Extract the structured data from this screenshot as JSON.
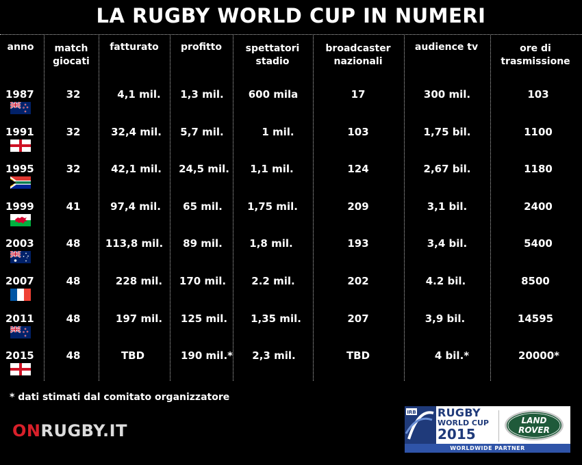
{
  "title": "LA RUGBY WORLD CUP IN NUMERI",
  "headers": {
    "anno": [
      "anno"
    ],
    "match": [
      "match",
      "giocati"
    ],
    "fatturato": [
      "fatturato"
    ],
    "profitto": [
      "profitto"
    ],
    "spettatori": [
      "spettatori",
      "stadio"
    ],
    "broadcaster": [
      "broadcaster",
      "nazionali"
    ],
    "audience": [
      "audience tv"
    ],
    "ore": [
      "ore di",
      "trasmissione"
    ]
  },
  "rows": [
    {
      "year": "1987",
      "flag": "new-zealand",
      "match": "32",
      "fatturato": "4,1 mil.",
      "profitto": "1,3 mil.",
      "spettatori": "600 mila",
      "broadcaster": "17",
      "audience": "300 mil.",
      "ore": "103"
    },
    {
      "year": "1991",
      "flag": "england",
      "match": "32",
      "fatturato": "32,4 mil.",
      "profitto": "5,7 mil.",
      "spettatori": "1 mil.",
      "broadcaster": "103",
      "audience": "1,75 bil.",
      "ore": "1100"
    },
    {
      "year": "1995",
      "flag": "south-africa",
      "match": "32",
      "fatturato": "42,1 mil.",
      "profitto": "24,5 mil.",
      "spettatori": "1,1 mil.",
      "broadcaster": "124",
      "audience": "2,67 bil.",
      "ore": "1180"
    },
    {
      "year": "1999",
      "flag": "wales",
      "match": "41",
      "fatturato": "97,4 mil.",
      "profitto": "65 mil.",
      "spettatori": "1,75 mil.",
      "broadcaster": "209",
      "audience": "3,1 bil.",
      "ore": "2400"
    },
    {
      "year": "2003",
      "flag": "australia",
      "match": "48",
      "fatturato": "113,8 mil.",
      "profitto": "89 mil.",
      "spettatori": "1,8 mil.",
      "broadcaster": "193",
      "audience": "3,4 bil.",
      "ore": "5400"
    },
    {
      "year": "2007",
      "flag": "france",
      "match": "48",
      "fatturato": "228 mil.",
      "profitto": "170 mil.",
      "spettatori": "2.2 mil.",
      "broadcaster": "202",
      "audience": "4.2 bil.",
      "ore": "8500"
    },
    {
      "year": "2011",
      "flag": "new-zealand",
      "match": "48",
      "fatturato": "197 mil.",
      "profitto": "125 mil.",
      "spettatori": "1,35 mil.",
      "broadcaster": "207",
      "audience": "3,9 bil.",
      "ore": "14595"
    },
    {
      "year": "2015",
      "flag": "england",
      "match": "48",
      "fatturato": "TBD",
      "profitto": "190 mil.*",
      "spettatori": "2,3 mil.",
      "broadcaster": "TBD",
      "audience": "4 bil.*",
      "ore": "20000*"
    }
  ],
  "footnote": "* dati stimati dal comitato organizzatore",
  "brand": {
    "on": "ON",
    "rest": "RUGBY.IT"
  },
  "sponsor": {
    "rwc_line1": "RUGBY",
    "rwc_line2": "WORLD CUP",
    "rwc_year": "2015",
    "irb": "IRB",
    "landrover_1": "LAND",
    "landrover_2": "ROVER",
    "partner": "WORLDWIDE PARTNER"
  },
  "colors": {
    "background": "#000000",
    "text": "#ffffff",
    "brand_red": "#d8202a",
    "rwc_blue": "#1f3a7a",
    "partner_blue": "#2f54a8",
    "landrover_green": "#1f5a3a"
  }
}
